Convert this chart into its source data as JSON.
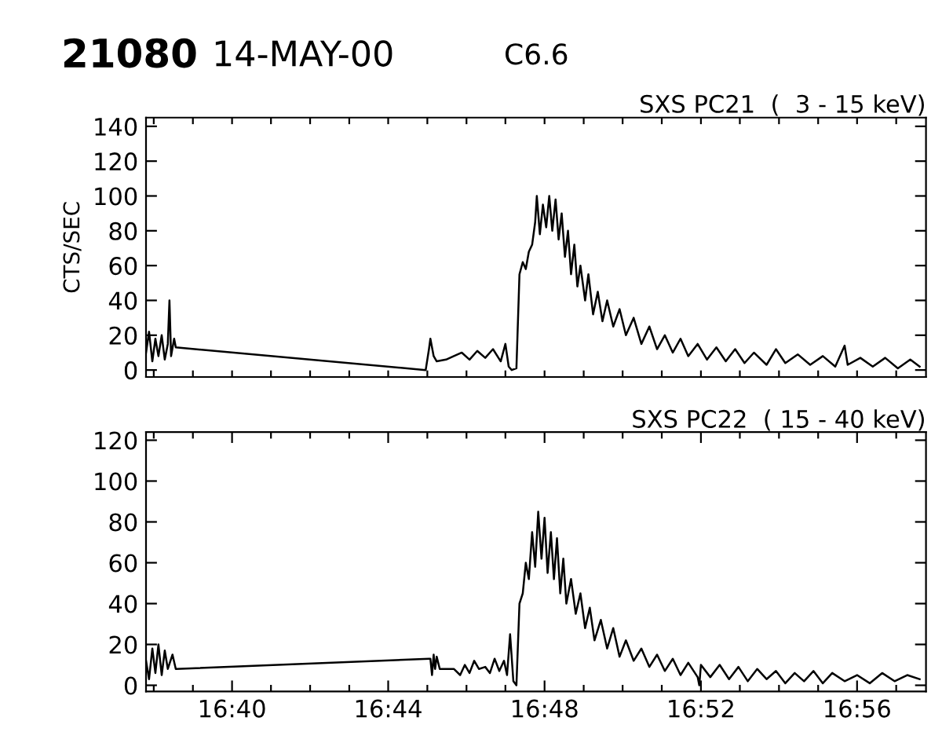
{
  "chart_data": [
    {
      "type": "line",
      "title": "SXS PC21  (  3 - 15 keV)",
      "ylabel": "CTS/SEC",
      "annotations": [
        "21080",
        "14-MAY-00",
        "C6.6"
      ],
      "tick_labels": "y",
      "grid": false,
      "legend": false,
      "marker": "none",
      "line_style": "solid",
      "xlim": [
        16.63,
        16.9627
      ],
      "xticks": [
        {
          "value": 16.6333,
          "label": null
        },
        {
          "value": 16.65,
          "label": null
        },
        {
          "value": 16.6667,
          "label": null
        },
        {
          "value": 16.6833,
          "label": null
        },
        {
          "value": 16.7,
          "label": null
        },
        {
          "value": 16.7167,
          "label": null
        },
        {
          "value": 16.7333,
          "label": null
        },
        {
          "value": 16.75,
          "label": null
        },
        {
          "value": 16.7667,
          "label": null
        },
        {
          "value": 16.7833,
          "label": null
        },
        {
          "value": 16.8,
          "label": null
        },
        {
          "value": 16.8167,
          "label": null
        },
        {
          "value": 16.8333,
          "label": null
        },
        {
          "value": 16.85,
          "label": null
        },
        {
          "value": 16.8667,
          "label": null
        },
        {
          "value": 16.8833,
          "label": null
        },
        {
          "value": 16.9,
          "label": null
        },
        {
          "value": 16.9167,
          "label": null
        },
        {
          "value": 16.9333,
          "label": null
        },
        {
          "value": 16.95,
          "label": null
        }
      ],
      "ylim": [
        -4,
        145
      ],
      "yticks": [
        0,
        20,
        40,
        60,
        80,
        100,
        120,
        140
      ],
      "series": [
        {
          "color": "#000000",
          "x": [
            16.63,
            16.6313,
            16.6327,
            16.634,
            16.6353,
            16.6367,
            16.638,
            16.6393,
            16.64,
            16.6407,
            16.642,
            16.6427,
            16.7493,
            16.7507,
            16.7513,
            16.7527,
            16.754,
            16.758,
            16.7613,
            16.7647,
            16.768,
            16.7713,
            16.7747,
            16.778,
            16.7813,
            16.7833,
            16.7847,
            16.786,
            16.788,
            16.7893,
            16.7907,
            16.792,
            16.7933,
            16.7947,
            16.796,
            16.7967,
            16.798,
            16.7993,
            16.8007,
            16.802,
            16.8033,
            16.8047,
            16.806,
            16.8073,
            16.8087,
            16.81,
            16.8113,
            16.8127,
            16.814,
            16.8153,
            16.8173,
            16.8187,
            16.8207,
            16.8227,
            16.8247,
            16.8267,
            16.8293,
            16.832,
            16.8347,
            16.838,
            16.8413,
            16.8447,
            16.848,
            16.8513,
            16.8547,
            16.858,
            16.8613,
            16.8653,
            16.8693,
            16.8733,
            16.8773,
            16.8813,
            16.8853,
            16.8893,
            16.8947,
            16.8987,
            16.9027,
            16.908,
            16.9133,
            16.9187,
            16.924,
            16.928,
            16.9293,
            16.9347,
            16.94,
            16.9453,
            16.9507,
            16.956,
            16.96
          ],
          "values": [
            10,
            22,
            5,
            18,
            8,
            20,
            6,
            15,
            40,
            8,
            18,
            13,
            0,
            12,
            18,
            8,
            5,
            6,
            8,
            10,
            6,
            11,
            7,
            12,
            5,
            15,
            2,
            0,
            1,
            55,
            62,
            58,
            68,
            72,
            85,
            100,
            78,
            95,
            82,
            100,
            80,
            98,
            75,
            90,
            65,
            80,
            55,
            72,
            48,
            60,
            40,
            55,
            32,
            45,
            28,
            40,
            25,
            35,
            20,
            30,
            15,
            25,
            12,
            20,
            10,
            18,
            8,
            15,
            6,
            13,
            5,
            12,
            4,
            10,
            3,
            12,
            4,
            9,
            3,
            8,
            2,
            14,
            3,
            7,
            2,
            7,
            1,
            6,
            2
          ]
        }
      ]
    },
    {
      "type": "line",
      "title": "SXS PC22  ( 15 - 40 keV)",
      "tick_labels": "xy",
      "grid": false,
      "legend": false,
      "marker": "none",
      "line_style": "solid",
      "xlim": [
        16.63,
        16.9627
      ],
      "xticks": [
        {
          "value": 16.6333,
          "label": null
        },
        {
          "value": 16.65,
          "label": null
        },
        {
          "value": 16.6667,
          "label": "16:40"
        },
        {
          "value": 16.6833,
          "label": null
        },
        {
          "value": 16.7,
          "label": null
        },
        {
          "value": 16.7167,
          "label": null
        },
        {
          "value": 16.7333,
          "label": "16:44"
        },
        {
          "value": 16.75,
          "label": null
        },
        {
          "value": 16.7667,
          "label": null
        },
        {
          "value": 16.7833,
          "label": null
        },
        {
          "value": 16.8,
          "label": "16:48"
        },
        {
          "value": 16.8167,
          "label": null
        },
        {
          "value": 16.8333,
          "label": null
        },
        {
          "value": 16.85,
          "label": null
        },
        {
          "value": 16.8667,
          "label": "16:52"
        },
        {
          "value": 16.8833,
          "label": null
        },
        {
          "value": 16.9,
          "label": null
        },
        {
          "value": 16.9167,
          "label": null
        },
        {
          "value": 16.9333,
          "label": "16:56"
        },
        {
          "value": 16.95,
          "label": null
        }
      ],
      "ylim": [
        -3,
        124
      ],
      "yticks": [
        0,
        20,
        40,
        60,
        80,
        100,
        120
      ],
      "series": [
        {
          "color": "#000000",
          "x": [
            16.63,
            16.6313,
            16.6327,
            16.634,
            16.6353,
            16.6367,
            16.638,
            16.6393,
            16.6413,
            16.6427,
            16.7507,
            16.7513,
            16.752,
            16.7527,
            16.7533,
            16.754,
            16.7553,
            16.7613,
            16.764,
            16.766,
            16.768,
            16.77,
            16.772,
            16.7747,
            16.7767,
            16.7787,
            16.7807,
            16.7827,
            16.784,
            16.7853,
            16.7867,
            16.788,
            16.7893,
            16.7907,
            16.792,
            16.7933,
            16.7947,
            16.796,
            16.7973,
            16.7987,
            16.8,
            16.8013,
            16.8027,
            16.804,
            16.8053,
            16.8067,
            16.808,
            16.8093,
            16.8113,
            16.8133,
            16.8153,
            16.8173,
            16.8193,
            16.8213,
            16.824,
            16.8267,
            16.8293,
            16.832,
            16.8347,
            16.838,
            16.8413,
            16.8447,
            16.848,
            16.8513,
            16.8547,
            16.858,
            16.8613,
            16.8653,
            16.866,
            16.8667,
            16.8707,
            16.8747,
            16.8787,
            16.8827,
            16.8867,
            16.8907,
            16.8947,
            16.8987,
            16.9027,
            16.9067,
            16.9107,
            16.9147,
            16.9187,
            16.9227,
            16.928,
            16.9333,
            16.9387,
            16.944,
            16.9493,
            16.9547,
            16.96
          ],
          "values": [
            12,
            3,
            18,
            6,
            20,
            5,
            17,
            8,
            15,
            8,
            13,
            13,
            5,
            15,
            8,
            14,
            8,
            8,
            5,
            10,
            6,
            12,
            8,
            9,
            6,
            13,
            7,
            12,
            5,
            25,
            2,
            0,
            40,
            45,
            60,
            52,
            75,
            58,
            85,
            62,
            82,
            55,
            75,
            52,
            72,
            45,
            62,
            40,
            52,
            35,
            45,
            28,
            38,
            22,
            32,
            18,
            28,
            14,
            22,
            12,
            18,
            9,
            15,
            7,
            13,
            5,
            11,
            4,
            0,
            10,
            4,
            10,
            3,
            9,
            2,
            8,
            3,
            7,
            1,
            6,
            2,
            7,
            1,
            6,
            2,
            5,
            1,
            6,
            2,
            5,
            3
          ]
        }
      ]
    }
  ]
}
